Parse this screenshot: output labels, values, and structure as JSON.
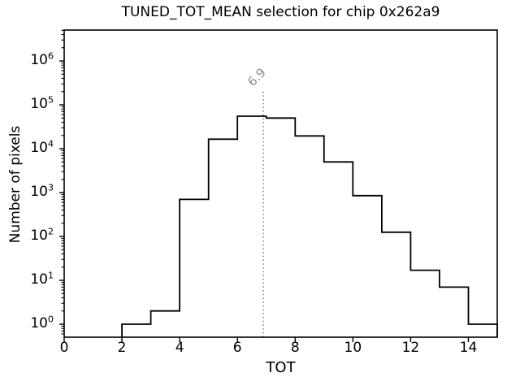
{
  "chart_data": {
    "type": "histogram",
    "title": "TUNED_TOT_MEAN selection for chip 0x262a9",
    "xlabel": "TOT",
    "ylabel": "Number of pixels",
    "xlim": [
      0,
      15
    ],
    "ylog": true,
    "x_ticks": [
      0,
      2,
      4,
      6,
      8,
      10,
      12,
      14
    ],
    "y_tick_exponents": [
      0,
      1,
      2,
      3,
      4,
      5,
      6
    ],
    "grid": false,
    "legend": false,
    "bin_edges": [
      2,
      3,
      4,
      5,
      6,
      7,
      8,
      9,
      10,
      11,
      12,
      13,
      14,
      15
    ],
    "counts": [
      1,
      2,
      700,
      16500,
      55000,
      50000,
      19500,
      5000,
      850,
      125,
      17,
      7,
      1
    ],
    "line_color": "#000000",
    "axes_color": "#000000",
    "background": "#ffffff",
    "vline": {
      "x": 6.9,
      "label": "6.9",
      "top_value": 200000,
      "color": "#8c8c8c",
      "style": "dotted"
    }
  }
}
